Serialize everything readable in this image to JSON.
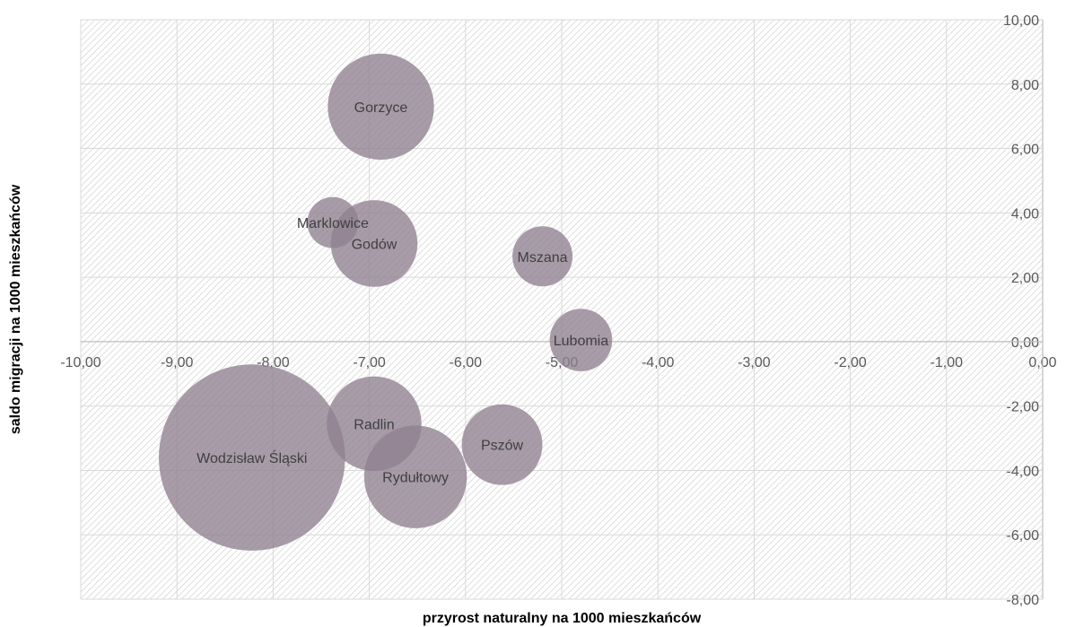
{
  "chart_data": {
    "type": "bubble",
    "xlabel": "przyrost naturalny na 1000 mieszkańców",
    "ylabel": "saldo migracji na 1000 mieszkańców",
    "xlim": [
      -10,
      0
    ],
    "ylim": [
      -8,
      10
    ],
    "x_ticks": [
      "-10,00",
      "-9,00",
      "-8,00",
      "-7,00",
      "-6,00",
      "-5,00",
      "-4,00",
      "-3,00",
      "-2,00",
      "-1,00",
      "0,00"
    ],
    "y_ticks": [
      "10,00",
      "8,00",
      "6,00",
      "4,00",
      "2,00",
      "0,00",
      "-2,00",
      "-4,00",
      "-6,00",
      "-8,00"
    ],
    "grid": true,
    "bubble_color": "#8f808f",
    "points": [
      {
        "label": "Gorzyce",
        "x": -6.88,
        "y": 7.3,
        "size": 0.78
      },
      {
        "label": "Marklowice",
        "x": -7.38,
        "y": 3.7,
        "size": 0.18
      },
      {
        "label": "Godów",
        "x": -6.95,
        "y": 3.05,
        "size": 0.52
      },
      {
        "label": "Mszana",
        "x": -5.2,
        "y": 2.65,
        "size": 0.25
      },
      {
        "label": "Lubomia",
        "x": -4.8,
        "y": 0.05,
        "size": 0.27
      },
      {
        "label": "Radlin",
        "x": -6.95,
        "y": -2.55,
        "size": 0.62
      },
      {
        "label": "Pszów",
        "x": -5.62,
        "y": -3.2,
        "size": 0.45
      },
      {
        "label": "Rydułtowy",
        "x": -6.52,
        "y": -4.2,
        "size": 0.73
      },
      {
        "label": "Wodzisław Śląski",
        "x": -8.22,
        "y": -3.6,
        "size": 2.4
      }
    ]
  }
}
